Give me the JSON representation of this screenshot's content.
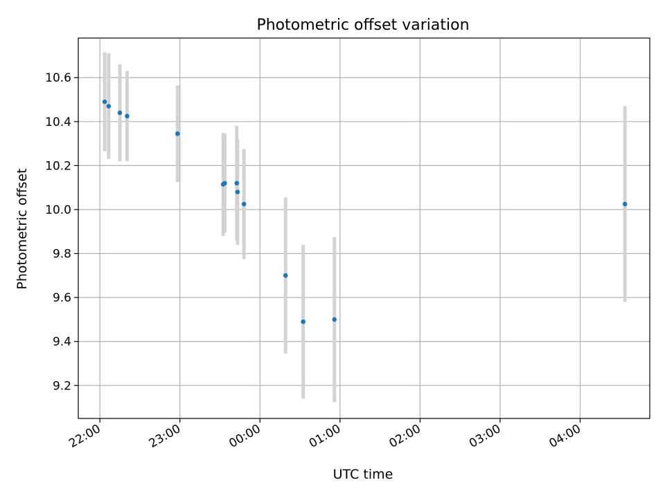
{
  "chart_data": {
    "type": "scatter",
    "title": "Photometric offset variation",
    "xlabel": "UTC time",
    "ylabel": "Photometric offset",
    "x_unit": "UTC time (hours after 22:00)",
    "xlim": [
      -0.27,
      6.87
    ],
    "ylim": [
      9.05,
      10.78
    ],
    "grid": true,
    "x_ticks": [
      {
        "x": 0,
        "label": "22:00"
      },
      {
        "x": 1,
        "label": "23:00"
      },
      {
        "x": 2,
        "label": "00:00"
      },
      {
        "x": 3,
        "label": "01:00"
      },
      {
        "x": 4,
        "label": "02:00"
      },
      {
        "x": 5,
        "label": "03:00"
      },
      {
        "x": 6,
        "label": "04:00"
      }
    ],
    "y_ticks": [
      {
        "y": 9.2,
        "label": "9.2"
      },
      {
        "y": 9.4,
        "label": "9.4"
      },
      {
        "y": 9.6,
        "label": "9.6"
      },
      {
        "y": 9.8,
        "label": "9.8"
      },
      {
        "y": 10.0,
        "label": "10.0"
      },
      {
        "y": 10.2,
        "label": "10.2"
      },
      {
        "y": 10.4,
        "label": "10.4"
      },
      {
        "y": 10.6,
        "label": "10.6"
      }
    ],
    "point_color": "#1f77b4",
    "errorbar_color": "#d3d3d3",
    "points": [
      {
        "time": "22:04",
        "x": 0.06,
        "y": 10.49,
        "yerr": 0.225
      },
      {
        "time": "22:07",
        "x": 0.11,
        "y": 10.47,
        "yerr": 0.24
      },
      {
        "time": "22:15",
        "x": 0.25,
        "y": 10.44,
        "yerr": 0.22
      },
      {
        "time": "22:20",
        "x": 0.34,
        "y": 10.425,
        "yerr": 0.205
      },
      {
        "time": "22:58",
        "x": 0.97,
        "y": 10.345,
        "yerr": 0.22
      },
      {
        "time": "23:32",
        "x": 1.54,
        "y": 10.115,
        "yerr": 0.235
      },
      {
        "time": "23:33",
        "x": 1.56,
        "y": 10.12,
        "yerr": 0.225
      },
      {
        "time": "23:42",
        "x": 1.71,
        "y": 10.12,
        "yerr": 0.26
      },
      {
        "time": "23:43",
        "x": 1.72,
        "y": 10.08,
        "yerr": 0.24
      },
      {
        "time": "23:48",
        "x": 1.8,
        "y": 10.025,
        "yerr": 0.25
      },
      {
        "time": "00:19",
        "x": 2.32,
        "y": 9.7,
        "yerr": 0.355
      },
      {
        "time": "00:32",
        "x": 2.54,
        "y": 9.49,
        "yerr": 0.35
      },
      {
        "time": "00:56",
        "x": 2.93,
        "y": 9.5,
        "yerr": 0.375
      },
      {
        "time": "04:33",
        "x": 6.56,
        "y": 10.025,
        "yerr": 0.445
      }
    ]
  }
}
